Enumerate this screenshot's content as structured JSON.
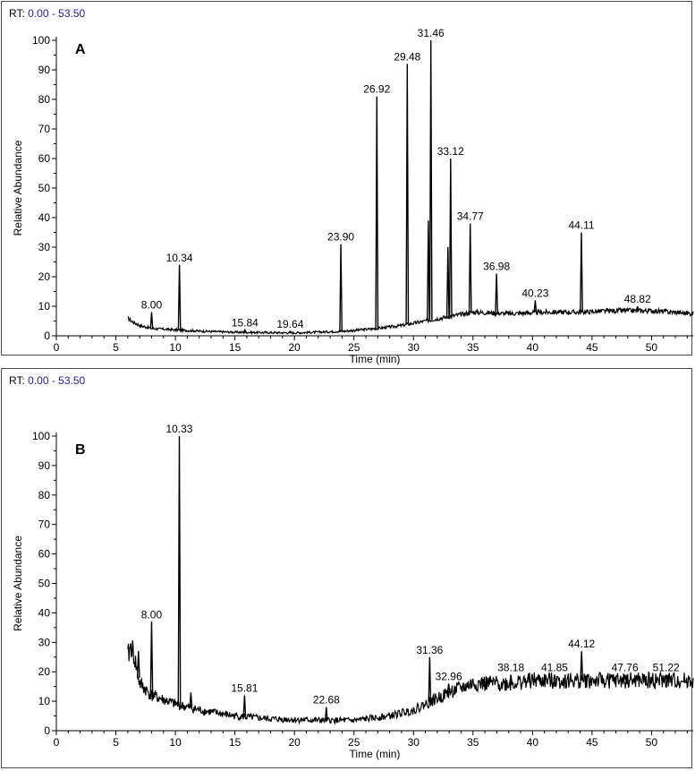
{
  "panels": [
    {
      "rt_label": "RT:",
      "rt_range": "0.00 - 53.50"
    },
    {
      "rt_label": "RT:",
      "rt_range": "0.00 - 53.50"
    }
  ],
  "chart_data": [
    {
      "type": "line",
      "panel_letter": "A",
      "xlabel": "Time (min)",
      "ylabel": "Relative Abundance",
      "xlim": [
        0,
        53.5
      ],
      "ylim": [
        0,
        100
      ],
      "x_ticks": [
        0,
        5,
        10,
        15,
        20,
        25,
        30,
        35,
        40,
        45,
        50
      ],
      "y_ticks": [
        0,
        10,
        20,
        30,
        40,
        50,
        60,
        70,
        80,
        90,
        100
      ],
      "grid": false,
      "baseline": [
        [
          6.0,
          6.0
        ],
        [
          6.3,
          5.0
        ],
        [
          7.0,
          3.5
        ],
        [
          8.0,
          2.5
        ],
        [
          10.0,
          2.0
        ],
        [
          12.0,
          1.6
        ],
        [
          15.0,
          1.2
        ],
        [
          20.0,
          1.0
        ],
        [
          24.0,
          1.5
        ],
        [
          27.0,
          2.5
        ],
        [
          29.0,
          3.5
        ],
        [
          31.0,
          5.0
        ],
        [
          33.0,
          6.5
        ],
        [
          35.0,
          8.0
        ],
        [
          38.0,
          7.5
        ],
        [
          41.0,
          8.0
        ],
        [
          44.0,
          8.0
        ],
        [
          47.0,
          8.5
        ],
        [
          50.0,
          8.5
        ],
        [
          53.5,
          7.5
        ]
      ],
      "peaks": [
        {
          "rt": 8.0,
          "abundance": 8,
          "label": "8.00"
        },
        {
          "rt": 10.34,
          "abundance": 24,
          "label": "10.34"
        },
        {
          "rt": 15.84,
          "abundance": 2,
          "label": "15.84"
        },
        {
          "rt": 19.64,
          "abundance": 1.5,
          "label": "19.64"
        },
        {
          "rt": 23.9,
          "abundance": 31,
          "label": "23.90"
        },
        {
          "rt": 26.92,
          "abundance": 81,
          "label": "26.92"
        },
        {
          "rt": 29.48,
          "abundance": 92,
          "label": "29.48"
        },
        {
          "rt": 31.25,
          "abundance": 39,
          "label": ""
        },
        {
          "rt": 31.46,
          "abundance": 100,
          "label": "31.46"
        },
        {
          "rt": 32.9,
          "abundance": 30,
          "label": ""
        },
        {
          "rt": 33.12,
          "abundance": 60,
          "label": "33.12"
        },
        {
          "rt": 34.77,
          "abundance": 38,
          "label": "34.77"
        },
        {
          "rt": 36.98,
          "abundance": 21,
          "label": "36.98"
        },
        {
          "rt": 40.23,
          "abundance": 12,
          "label": "40.23"
        },
        {
          "rt": 44.11,
          "abundance": 35,
          "label": "44.11"
        },
        {
          "rt": 48.82,
          "abundance": 10,
          "label": "48.82"
        }
      ]
    },
    {
      "type": "line",
      "panel_letter": "B",
      "xlabel": "Time (min)",
      "ylabel": "Relative Abundance",
      "xlim": [
        0,
        53.5
      ],
      "ylim": [
        0,
        100
      ],
      "x_ticks": [
        0,
        5,
        10,
        15,
        20,
        25,
        30,
        35,
        40,
        45,
        50
      ],
      "y_ticks": [
        0,
        10,
        20,
        30,
        40,
        50,
        60,
        70,
        80,
        90,
        100
      ],
      "grid": false,
      "baseline": [
        [
          6.0,
          25.0
        ],
        [
          6.3,
          29.0
        ],
        [
          6.6,
          24.0
        ],
        [
          7.0,
          16.0
        ],
        [
          8.0,
          12.0
        ],
        [
          10.0,
          9.0
        ],
        [
          12.0,
          7.0
        ],
        [
          15.0,
          5.0
        ],
        [
          18.0,
          4.0
        ],
        [
          22.0,
          3.5
        ],
        [
          25.0,
          3.5
        ],
        [
          28.0,
          5.0
        ],
        [
          30.0,
          7.0
        ],
        [
          31.5,
          10.0
        ],
        [
          33.0,
          13.0
        ],
        [
          35.0,
          16.0
        ],
        [
          38.0,
          16.0
        ],
        [
          40.0,
          17.0
        ],
        [
          44.0,
          17.0
        ],
        [
          47.0,
          17.0
        ],
        [
          50.0,
          17.0
        ],
        [
          53.5,
          17.0
        ]
      ],
      "peaks": [
        {
          "rt": 6.9,
          "abundance": 27,
          "label": ""
        },
        {
          "rt": 8.0,
          "abundance": 37,
          "label": "8.00"
        },
        {
          "rt": 10.33,
          "abundance": 100,
          "label": "10.33"
        },
        {
          "rt": 11.3,
          "abundance": 13,
          "label": ""
        },
        {
          "rt": 15.81,
          "abundance": 12,
          "label": "15.81"
        },
        {
          "rt": 22.68,
          "abundance": 8,
          "label": "22.68"
        },
        {
          "rt": 31.36,
          "abundance": 25,
          "label": "31.36"
        },
        {
          "rt": 32.96,
          "abundance": 16,
          "label": "32.96"
        },
        {
          "rt": 38.18,
          "abundance": 19,
          "label": "38.18"
        },
        {
          "rt": 41.85,
          "abundance": 19,
          "label": "41.85"
        },
        {
          "rt": 44.12,
          "abundance": 27,
          "label": "44.12"
        },
        {
          "rt": 47.76,
          "abundance": 19,
          "label": "47.76"
        },
        {
          "rt": 51.22,
          "abundance": 19,
          "label": "51.22"
        }
      ]
    }
  ]
}
